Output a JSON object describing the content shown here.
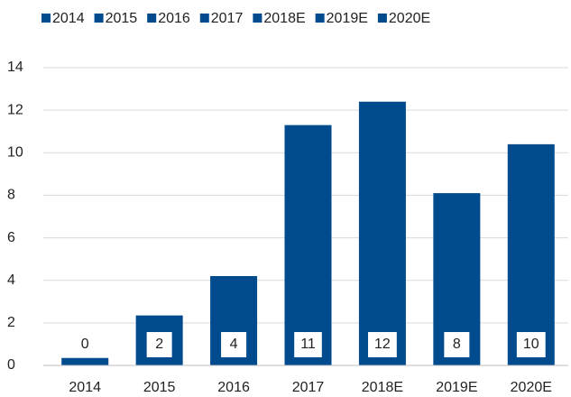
{
  "chart_data": {
    "type": "bar",
    "categories": [
      "2014",
      "2015",
      "2016",
      "2017",
      "2018E",
      "2019E",
      "2020E"
    ],
    "values": [
      0.35,
      2.35,
      4.2,
      11.3,
      12.4,
      8.1,
      10.4
    ],
    "value_labels": [
      "0",
      "2",
      "4",
      "11",
      "12",
      "8",
      "10"
    ],
    "color": "#004b8d",
    "ylim": [
      0,
      14
    ],
    "yticks": [
      0,
      2,
      4,
      6,
      8,
      10,
      12,
      14
    ],
    "grid": true
  }
}
